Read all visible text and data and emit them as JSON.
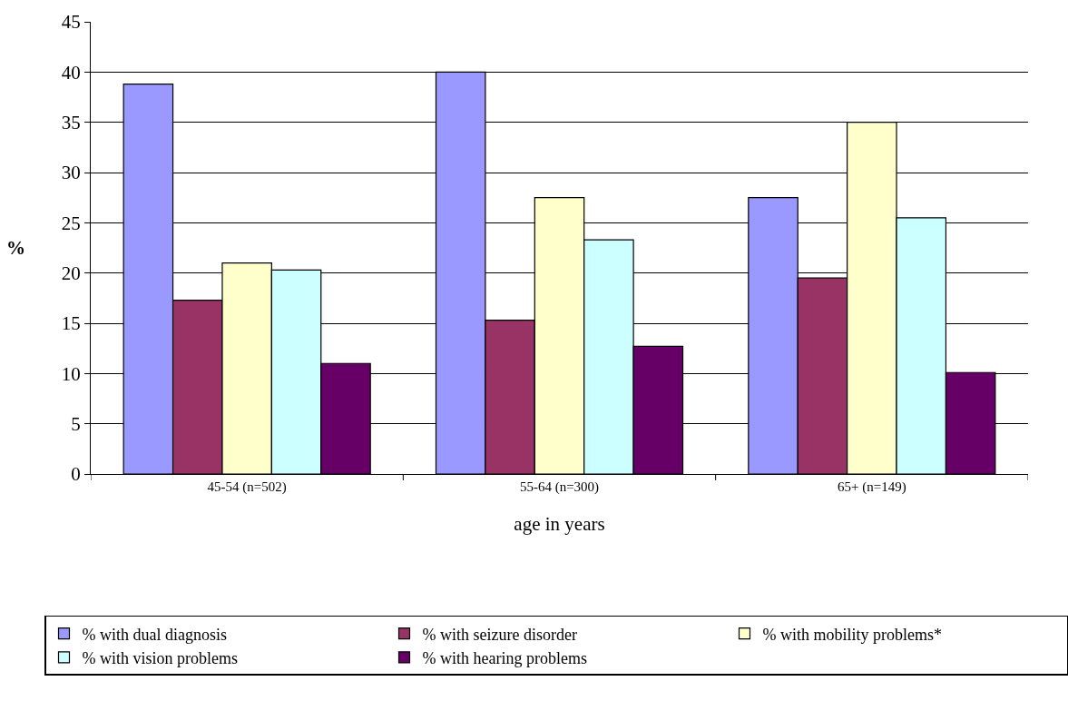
{
  "chart_data": {
    "type": "bar",
    "xlabel": "age in years",
    "ylabel": "%",
    "categories": [
      "45-54 (n=502)",
      "55-64 (n=300)",
      "65+ (n=149)"
    ],
    "series": [
      {
        "name": "% with dual diagnosis",
        "color": "#9999ff",
        "values": [
          38.8,
          40.0,
          27.5
        ]
      },
      {
        "name": "% with seizure disorder",
        "color": "#993366",
        "values": [
          17.3,
          15.3,
          19.5
        ]
      },
      {
        "name": "% with mobility problems*",
        "color": "#ffffcc",
        "values": [
          21.0,
          27.5,
          35.0
        ]
      },
      {
        "name": "% with vision problems",
        "color": "#ccffff",
        "values": [
          20.3,
          23.3,
          25.5
        ]
      },
      {
        "name": "% with hearing problems",
        "color": "#660066",
        "values": [
          11.0,
          12.7,
          10.1
        ]
      }
    ],
    "ylim": [
      0,
      45
    ],
    "yticks": [
      0,
      5,
      10,
      15,
      20,
      25,
      30,
      35,
      40,
      45
    ],
    "grid": "y",
    "legend": "bottom"
  }
}
